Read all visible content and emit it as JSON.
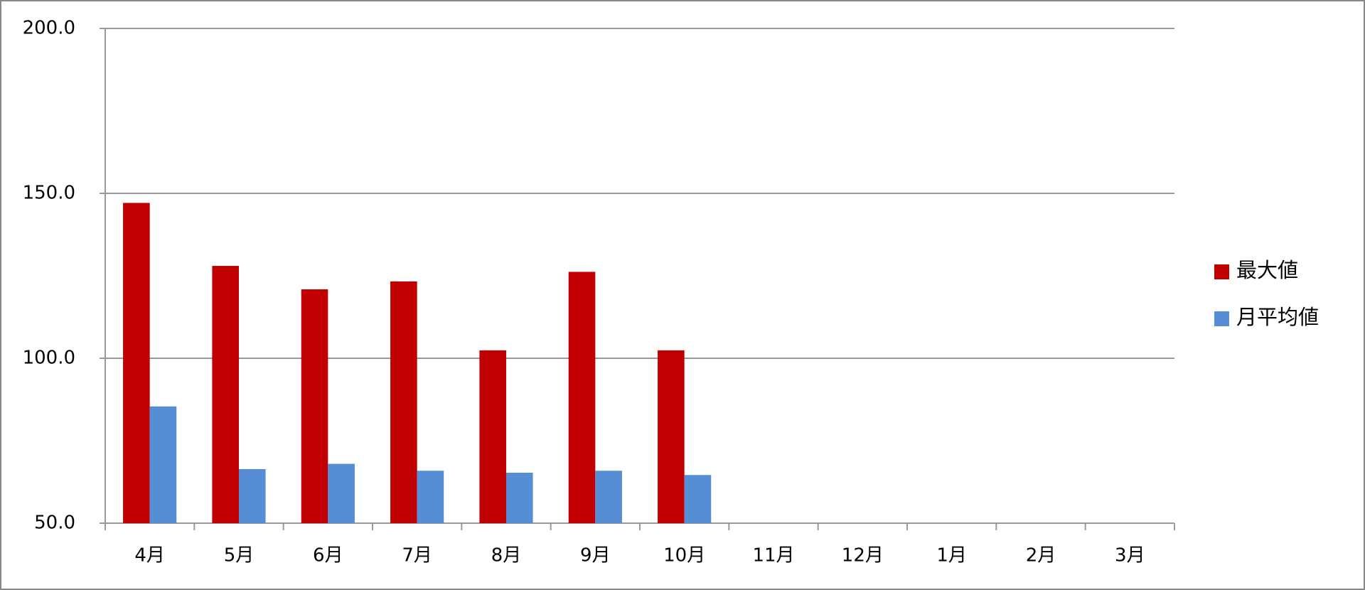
{
  "chart_data": {
    "type": "bar",
    "categories": [
      "4月",
      "5月",
      "6月",
      "7月",
      "8月",
      "9月",
      "10月",
      "11月",
      "12月",
      "1月",
      "2月",
      "3月"
    ],
    "series": [
      {
        "name": "最大値",
        "color": "#c00000",
        "values": [
          147.1,
          128.0,
          120.9,
          123.3,
          102.4,
          126.2,
          102.4,
          null,
          null,
          null,
          null,
          null
        ]
      },
      {
        "name": "月平均値",
        "color": "#558ed5",
        "values": [
          85.4,
          66.4,
          68.0,
          65.9,
          65.3,
          65.9,
          64.6,
          null,
          null,
          null,
          null,
          null
        ]
      }
    ],
    "ylim": [
      50,
      200
    ],
    "yticks": [
      {
        "value": 50,
        "label": "50.0"
      },
      {
        "value": 100,
        "label": "100.0"
      },
      {
        "value": 150,
        "label": "150.0"
      },
      {
        "value": 200,
        "label": "200.0"
      }
    ],
    "grid": true,
    "legend": "right"
  }
}
